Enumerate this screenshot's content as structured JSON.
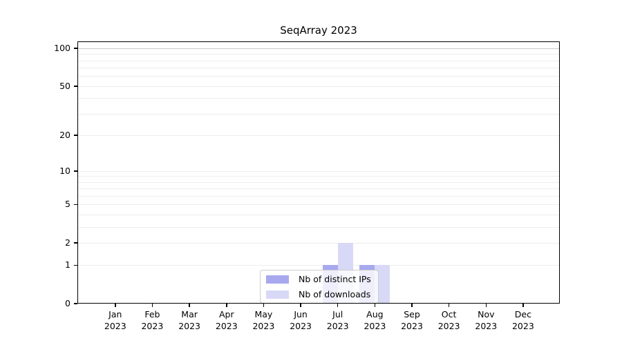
{
  "chart_data": {
    "type": "bar",
    "title": "SeqArray 2023",
    "year": "2023",
    "months": [
      "Jan",
      "Feb",
      "Mar",
      "Apr",
      "May",
      "Jun",
      "Jul",
      "Aug",
      "Sep",
      "Oct",
      "Nov",
      "Dec"
    ],
    "series": [
      {
        "name": "Nb of distinct IPs",
        "color": "#a8a8ef",
        "values": [
          0,
          0,
          0,
          0,
          0,
          0,
          1,
          1,
          0,
          0,
          0,
          0
        ]
      },
      {
        "name": "Nb of downloads",
        "color": "#d8d8f7",
        "values": [
          0,
          0,
          0,
          0,
          0,
          0,
          2,
          1,
          0,
          0,
          0,
          0
        ]
      }
    ],
    "y_axis": {
      "scale": "log1p",
      "tick_values": [
        0,
        1,
        2,
        5,
        10,
        20,
        50,
        100
      ],
      "gridline_values": [
        1,
        2,
        3,
        4,
        5,
        6,
        7,
        8,
        9,
        10,
        20,
        30,
        40,
        50,
        60,
        70,
        80,
        90,
        100
      ],
      "ylim": [
        0,
        113.4
      ],
      "gridline_color": "#ededed",
      "gridline_color_100": "#c9c9c9"
    },
    "legend": {
      "position": "lower center"
    }
  }
}
